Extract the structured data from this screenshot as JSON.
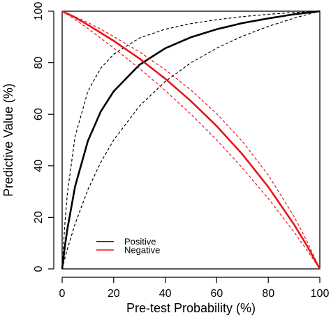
{
  "chart_data": {
    "type": "line",
    "title": "",
    "xlabel": "Pre-test Probability (%)",
    "ylabel": "Predictive Value (%)",
    "xlim": [
      0,
      100
    ],
    "ylim": [
      0,
      100
    ],
    "xticks": [
      "0",
      "20",
      "40",
      "60",
      "80",
      "100"
    ],
    "yticks": [
      "0",
      "20",
      "40",
      "60",
      "80",
      "100"
    ],
    "grid": false,
    "legend_position": "bottom-left",
    "legend": [
      {
        "label": "Positive",
        "color": "#000000"
      },
      {
        "label": "Negative",
        "color": "#e8141b"
      }
    ],
    "x": [
      0,
      1,
      2,
      5,
      10,
      15,
      20,
      30,
      40,
      50,
      60,
      70,
      80,
      90,
      95,
      100
    ],
    "series": [
      {
        "name": "Positive",
        "color": "#000000",
        "style": "solid",
        "width": 2.6,
        "values": [
          0,
          8.3,
          15.3,
          31.9,
          49.7,
          61.1,
          68.9,
          79.2,
          85.6,
          89.9,
          93.0,
          95.4,
          97.2,
          98.8,
          99.4,
          100
        ]
      },
      {
        "color": "#000000",
        "style": "dashed",
        "width": 1.2,
        "values": [
          0,
          4.0,
          7.6,
          17.4,
          30.8,
          41.4,
          50.0,
          63.2,
          72.7,
          80.0,
          85.7,
          90.3,
          94.1,
          97.3,
          98.7,
          100
        ]
      },
      {
        "color": "#000000",
        "style": "dashed",
        "width": 1.2,
        "values": [
          0,
          16.8,
          29.0,
          51.3,
          69.0,
          77.9,
          83.3,
          89.6,
          93.0,
          95.2,
          96.7,
          97.9,
          98.8,
          99.5,
          99.7,
          100
        ]
      },
      {
        "name": "Negative",
        "color": "#e8141b",
        "style": "solid",
        "width": 2.6,
        "values": [
          100,
          99.5,
          99.1,
          97.6,
          94.7,
          91.6,
          88.5,
          81.6,
          73.8,
          65.1,
          55.4,
          44.4,
          31.8,
          17.2,
          9.0,
          0
        ]
      },
      {
        "color": "#e8141b",
        "style": "dashed",
        "width": 1.2,
        "values": [
          100,
          99.6,
          99.2,
          97.9,
          95.6,
          93.0,
          90.2,
          84.2,
          77.3,
          69.4,
          60.2,
          49.4,
          36.4,
          20.3,
          10.8,
          0
        ]
      },
      {
        "color": "#e8141b",
        "style": "dashed",
        "width": 1.2,
        "values": [
          100,
          99.3,
          98.7,
          96.8,
          93.3,
          89.5,
          85.7,
          77.8,
          69.2,
          60.0,
          50.0,
          39.1,
          27.3,
          14.3,
          7.3,
          0
        ]
      }
    ]
  }
}
